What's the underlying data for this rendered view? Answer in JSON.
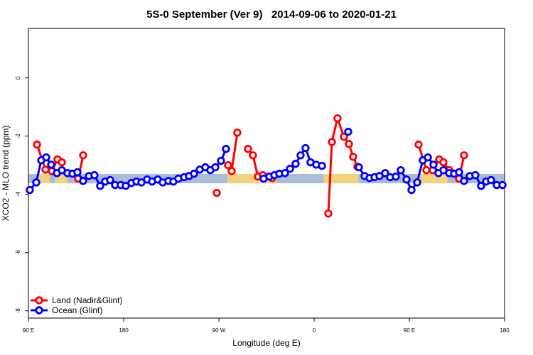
{
  "chart_data": {
    "type": "line",
    "title": "5S-0 September (Ver 9)   2014-09-06 to 2020-01-21",
    "x_label": "Longitude (deg E)",
    "y_label": "XCO2 - MLO trend (ppm)",
    "xlim": [
      90,
      540
    ],
    "ylim": [
      -8.25,
      1.7
    ],
    "xticks": [
      {
        "value": 90,
        "label": "90 E"
      },
      {
        "value": 180,
        "label": "180"
      },
      {
        "value": 270,
        "label": "90 W"
      },
      {
        "value": 360,
        "label": "0"
      },
      {
        "value": 450,
        "label": "90 E"
      },
      {
        "value": 540,
        "label": "180"
      }
    ],
    "yticks": [
      0,
      -2,
      -4,
      -6,
      -8
    ],
    "band": [
      -3.62,
      -3.3
    ],
    "band_color": "#a9bdd9",
    "land_ranges": [
      [
        98,
        110
      ],
      [
        115,
        127
      ],
      [
        278,
        325
      ],
      [
        369,
        402
      ],
      [
        459,
        486
      ]
    ],
    "land_color": "#f3d27c",
    "legend": "bottom-left",
    "series": [
      {
        "name": "Land (Nadir&Glint)",
        "color": "#ff0000",
        "x": [
          98.1,
          106.1,
          112.2,
          117.5,
          121.6,
          null,
          137,
          141.7,
          null,
          268,
          null,
          278.7,
          282.1,
          287.4,
          null,
          297.5,
          302.2,
          306.9,
          311.6,
          320.4,
          null,
          373.4,
          376.8,
          382.1,
          388.2,
          392.9,
          396.9,
          400.9,
          null,
          458.7,
          466.1,
          472.1,
          478.2,
          482.2,
          487.6,
          null,
          497,
          501.7
        ],
        "values": [
          -2.29,
          -3.15,
          -3.2,
          -2.8,
          -2.9,
          null,
          -3.46,
          -2.66,
          null,
          -3.95,
          null,
          -3.0,
          -3.2,
          -1.88,
          null,
          -2.44,
          -2.66,
          -3.39,
          -3.34,
          -3.44,
          null,
          -4.66,
          -2.2,
          -1.39,
          -2.02,
          -2.27,
          -2.71,
          -3.05,
          null,
          -2.29,
          -3.17,
          -3.17,
          -2.8,
          -2.9,
          -3.17,
          null,
          -3.46,
          -2.66
        ]
      },
      {
        "name": "Ocean (Glint)",
        "color": "#0000ff",
        "x": [
          91.3,
          97.4,
          102.1,
          106.8,
          111.5,
          116.9,
          121.6,
          126.9,
          131.6,
          136.3,
          141.7,
          147.1,
          152.4,
          157.8,
          162.5,
          167.2,
          171.9,
          177.3,
          182,
          187.4,
          192.1,
          196.8,
          202.2,
          206.9,
          212.2,
          216.9,
          222.3,
          227,
          231.7,
          237.1,
          241.8,
          246.5,
          251.9,
          257.2,
          261.9,
          266.6,
          272,
          276.7,
          null,
          312.3,
          317.7,
          322.4,
          327.1,
          332.5,
          337.2,
          342.5,
          347.2,
          351.9,
          356.6,
          362,
          367.4,
          null,
          392.2,
          null,
          402.3,
          407.7,
          412.4,
          417.1,
          421.8,
          427.1,
          431.8,
          437.2,
          441.9,
          447.3,
          452,
          457.4,
          462.7,
          467.5,
          472.8,
          477.5,
          482.2,
          487.6,
          492.3,
          497,
          501.7,
          507.1,
          512.4,
          517.8,
          522.5,
          527.2,
          532.6,
          538
        ],
        "values": [
          -3.85,
          -3.59,
          -2.83,
          -2.73,
          -2.98,
          -3.27,
          -3.17,
          -3.27,
          -3.29,
          -3.24,
          -3.54,
          -3.37,
          -3.34,
          -3.71,
          -3.56,
          -3.51,
          -3.68,
          -3.68,
          -3.71,
          -3.61,
          -3.56,
          -3.59,
          -3.49,
          -3.56,
          -3.49,
          -3.59,
          -3.54,
          -3.56,
          -3.46,
          -3.41,
          -3.37,
          -3.29,
          -3.15,
          -3.07,
          -3.17,
          -3.07,
          -2.85,
          -2.44,
          null,
          -3.46,
          -3.39,
          -3.34,
          -3.29,
          -3.27,
          -3.12,
          -2.95,
          -2.66,
          -2.41,
          -2.9,
          -2.98,
          -3.02,
          null,
          -1.85,
          null,
          -3.07,
          -3.37,
          -3.44,
          -3.41,
          -3.37,
          -3.27,
          -3.41,
          -3.39,
          -3.17,
          -3.49,
          -3.85,
          -3.59,
          -2.83,
          -2.73,
          -2.98,
          -3.27,
          -3.17,
          -3.27,
          -3.29,
          -3.24,
          -3.54,
          -3.37,
          -3.34,
          -3.71,
          -3.56,
          -3.51,
          -3.68,
          -3.68
        ]
      }
    ]
  }
}
